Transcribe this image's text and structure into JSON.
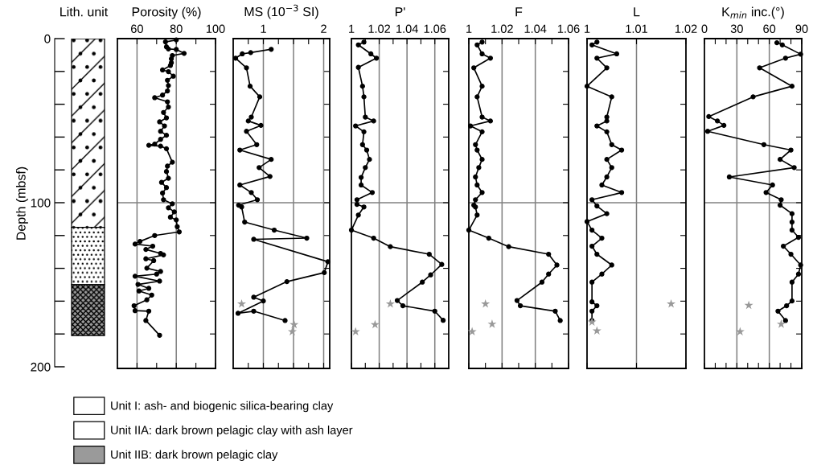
{
  "chart_data": [
    {
      "type": "bar",
      "title": "Lith. unit",
      "ylabel": "Depth (mbsf)",
      "stacked": true,
      "categories": [
        null
      ],
      "ylim": [
        201,
        0
      ],
      "yticks": [
        0,
        {
          "value": 20,
          "label": null
        },
        {
          "value": 40,
          "label": null
        },
        {
          "value": 60,
          "label": null
        },
        {
          "value": 80,
          "label": null
        },
        100,
        {
          "value": 120,
          "label": null
        },
        {
          "value": 140,
          "label": null
        },
        {
          "value": 160,
          "label": null
        },
        {
          "value": 180,
          "label": null
        },
        200
      ],
      "tick_labels": "y",
      "legend": "bottom",
      "series": [
        {
          "name": "Unit I: ash- and biogenic silica-bearing clay",
          "color": "#ffffff",
          "values": [
            115
          ]
        },
        {
          "name": "Unit IIA: dark brown pelagic clay with ash layer",
          "color": "#ffffff",
          "values": [
            35
          ]
        },
        {
          "name": "Unit IIB: dark brown pelagic clay",
          "color": "#9a9a9a",
          "values": [
            31
          ]
        }
      ]
    },
    {
      "type": "line",
      "title": "Porosity (%)",
      "orientation": "horizontal",
      "marker": "circle",
      "tick_labels": "x",
      "xlim": [
        50,
        100
      ],
      "xticks": [
        60,
        {
          "value": 70,
          "label": null
        },
        80,
        {
          "value": 90,
          "label": null
        },
        100
      ],
      "ylim": [
        201,
        0
      ],
      "yticks": [
        {
          "value": 20,
          "label": null
        },
        {
          "value": 40,
          "label": null
        },
        {
          "value": 60,
          "label": null
        },
        {
          "value": 80,
          "label": null
        },
        {
          "value": 100,
          "label": null
        },
        {
          "value": 120,
          "label": null
        },
        {
          "value": 140,
          "label": null
        },
        {
          "value": 160,
          "label": null
        },
        {
          "value": 180,
          "label": null
        }
      ],
      "ref_lines": [
        {
          "axis": "y",
          "value": 100,
          "color": "#808080"
        },
        {
          "axis": "x",
          "value": 60,
          "color": "#808080"
        },
        {
          "axis": "x",
          "value": 80,
          "color": "#808080"
        }
      ],
      "series": [
        {
          "color": "#000000",
          "x": [
            0.8,
            2,
            5,
            6.3,
            6.6,
            9,
            10.3,
            12.3,
            14.7,
            16.4,
            19.1,
            20.1,
            22.9,
            25.4,
            28.6,
            31.9,
            34.4,
            36,
            38.5,
            41.7,
            45,
            48.3,
            50.7,
            53.2,
            56.5,
            58.9,
            61.4,
            64.3,
            65,
            65.5,
            67.1,
            75.3,
            77.7,
            81,
            85.1,
            87.6,
            90.8,
            94.1,
            98.2,
            100.7,
            103.1,
            105.6,
            108.8,
            110.5,
            114.6,
            117.8,
            120,
            123.6,
            125.2,
            126.5,
            128.5,
            130.9,
            131.8,
            134.2,
            135.3,
            139.9,
            141.9,
            143.5,
            144.8,
            147.8,
            149.8,
            152.2,
            153.8,
            156.3,
            159.2,
            162.8,
            165.8,
            166.1,
            171.8,
            180.8
          ],
          "values": [
            80,
            74.5,
            75,
            76,
            80,
            84,
            78,
            77.5,
            77.5,
            77,
            73,
            76,
            78.5,
            75.5,
            76,
            75.5,
            73,
            69,
            75.5,
            76,
            73.5,
            75,
            71.5,
            74,
            72,
            75,
            72,
            69,
            66,
            72,
            75,
            78,
            75.5,
            75,
            76,
            72.5,
            75,
            73,
            73.5,
            78,
            76,
            79,
            77,
            80,
            80.5,
            81.5,
            69,
            61.5,
            59,
            68,
            64.5,
            72,
            73.5,
            64.5,
            68.5,
            65,
            72,
            70,
            59,
            71.5,
            60.5,
            66,
            61,
            67.5,
            65,
            58.5,
            59,
            66,
            64.5,
            71.5
          ]
        }
      ]
    },
    {
      "type": "line",
      "title": "MS (10$^{−3}$ SI)",
      "orientation": "horizontal",
      "marker": "circle",
      "tick_labels": "x",
      "xlim": [
        0.5,
        2.1
      ],
      "xticks": [
        {
          "value": 0.75,
          "label": null
        },
        1,
        {
          "value": 1.25,
          "label": null
        },
        {
          "value": 1.5,
          "label": null
        },
        {
          "value": 1.75,
          "label": null
        },
        2
      ],
      "ylim": [
        201,
        0
      ],
      "yticks": [
        {
          "value": 20,
          "label": null
        },
        {
          "value": 40,
          "label": null
        },
        {
          "value": 60,
          "label": null
        },
        {
          "value": 80,
          "label": null
        },
        {
          "value": 100,
          "label": null
        },
        {
          "value": 120,
          "label": null
        },
        {
          "value": 140,
          "label": null
        },
        {
          "value": 160,
          "label": null
        },
        {
          "value": 180,
          "label": null
        }
      ],
      "ref_lines": [
        {
          "axis": "y",
          "value": 100,
          "color": "#808080"
        },
        {
          "axis": "x",
          "value": 1,
          "color": "#808080"
        },
        {
          "axis": "x",
          "value": 1.5,
          "color": "#808080"
        },
        {
          "axis": "x",
          "value": 2,
          "color": "#808080"
        }
      ],
      "series": [
        {
          "color": "#000000",
          "x": [
            6.5,
            8.5,
            9.3,
            11.9,
            17.8,
            29,
            35.5,
            47.8,
            50.2,
            52.9,
            56.5,
            64.6,
            67.9,
            73.6,
            78.6,
            84,
            89.2,
            93.8,
            98.2,
            101.5,
            102.6,
            111.8,
            116.7,
            121.6,
            122.3,
            136,
            142.6,
            148.1,
            157.6,
            159.9,
            167.4,
            166.1,
            171.8
          ],
          "values": [
            1.13,
            0.79,
            0.65,
            0.54,
            0.72,
            0.78,
            0.94,
            0.8,
            0.75,
            0.96,
            0.72,
            0.89,
            0.61,
            1.13,
            0.93,
            1.11,
            0.61,
            0.8,
            0.9,
            0.59,
            0.64,
            0.69,
            1.18,
            1.72,
            0.84,
            2.07,
            2.01,
            1.39,
            0.84,
            1,
            0.58,
            0.84,
            1.36
          ]
        },
        {
          "type": "scatter",
          "marker": "star",
          "color": "#999999",
          "x": [
            161.7,
            174.3,
            178.6
          ],
          "values": [
            0.64,
            1.51,
            1.48
          ]
        }
      ]
    },
    {
      "type": "line",
      "title": "P'",
      "orientation": "horizontal",
      "marker": "circle",
      "tick_labels": "x",
      "xlim": [
        1,
        1.07
      ],
      "xticks": [
        1,
        {
          "value": 1.01,
          "label": null
        },
        1.02,
        {
          "value": 1.03,
          "label": null
        },
        1.04,
        {
          "value": 1.05,
          "label": null
        },
        1.06
      ],
      "ylim": [
        201,
        0
      ],
      "yticks": [
        {
          "value": 20,
          "label": null
        },
        {
          "value": 40,
          "label": null
        },
        {
          "value": 60,
          "label": null
        },
        {
          "value": 80,
          "label": null
        },
        {
          "value": 100,
          "label": null
        },
        {
          "value": 120,
          "label": null
        },
        {
          "value": 140,
          "label": null
        },
        {
          "value": 160,
          "label": null
        },
        {
          "value": 180,
          "label": null
        }
      ],
      "ref_lines": [
        {
          "axis": "y",
          "value": 100,
          "color": "#808080"
        },
        {
          "axis": "x",
          "value": 1.02,
          "color": "#808080"
        },
        {
          "axis": "x",
          "value": 1.04,
          "color": "#808080"
        },
        {
          "axis": "x",
          "value": 1.06,
          "color": "#808080"
        }
      ],
      "series": [
        {
          "color": "#000000",
          "x": [
            2.1,
            3.8,
            9.3,
            11.9,
            17.5,
            29,
            35.5,
            47.8,
            50.2,
            53.2,
            56.8,
            64.6,
            67.9,
            73.6,
            78.6,
            84.6,
            89.2,
            93.8,
            98.2,
            101,
            102.6,
            107.5,
            116.7,
            121.6,
            126.8,
            131.4,
            137.6,
            144,
            148.4,
            159.6,
            162.8,
            166.1,
            171.7
          ],
          "values": [
            1.009,
            1.005,
            1.014,
            1.018,
            1.005,
            1.008,
            1.009,
            1.01,
            1.016,
            1.003,
            1.009,
            1.008,
            1.011,
            1.013,
            1.01,
            1.007,
            1.007,
            1.015,
            1.004,
            1.004,
            1.009,
            1.005,
            1.0,
            1.016,
            1.028,
            1.056,
            1.065,
            1.057,
            1.051,
            1.033,
            1.037,
            1.06,
            1.066
          ]
        },
        {
          "type": "scatter",
          "marker": "star",
          "color": "#999999",
          "x": [
            161.7,
            174.3,
            178.6
          ],
          "values": [
            1.028,
            1.017,
            1.003
          ]
        }
      ]
    },
    {
      "type": "line",
      "title": "F",
      "orientation": "horizontal",
      "marker": "circle",
      "tick_labels": "x",
      "xlim": [
        1,
        1.06
      ],
      "xticks": [
        1,
        {
          "value": 1.01,
          "label": null
        },
        1.02,
        {
          "value": 1.03,
          "label": null
        },
        1.04,
        {
          "value": 1.05,
          "label": null
        },
        1.06
      ],
      "ylim": [
        201,
        0
      ],
      "yticks": [
        {
          "value": 20,
          "label": null
        },
        {
          "value": 40,
          "label": null
        },
        {
          "value": 60,
          "label": null
        },
        {
          "value": 80,
          "label": null
        },
        {
          "value": 100,
          "label": null
        },
        {
          "value": 120,
          "label": null
        },
        {
          "value": 140,
          "label": null
        },
        {
          "value": 160,
          "label": null
        },
        {
          "value": 180,
          "label": null
        }
      ],
      "ref_lines": [
        {
          "axis": "y",
          "value": 100,
          "color": "#808080"
        },
        {
          "axis": "x",
          "value": 1.02,
          "color": "#808080"
        },
        {
          "axis": "x",
          "value": 1.04,
          "color": "#808080"
        }
      ],
      "series": [
        {
          "color": "#000000",
          "x": [
            2.1,
            3.8,
            9.3,
            11.9,
            17.8,
            29,
            35.5,
            47.8,
            50.2,
            53.2,
            56.8,
            64.6,
            67.9,
            73.6,
            78.6,
            84.3,
            89.2,
            93.8,
            98.2,
            101.5,
            102.6,
            107.5,
            116.7,
            121.6,
            126.8,
            131.4,
            138,
            143.5,
            148.4,
            159.6,
            162.8,
            166.1,
            171.8
          ],
          "values": [
            1.008,
            1.005,
            1.008,
            1.013,
            1.003,
            1.008,
            1.005,
            1.008,
            1.013,
            1.001,
            1.008,
            1.004,
            1.005,
            1.008,
            1.006,
            1.004,
            1.005,
            1.008,
            1.004,
            1.003,
            1.004,
            1.005,
            1.0,
            1.012,
            1.024,
            1.048,
            1.053,
            1.048,
            1.044,
            1.029,
            1.031,
            1.052,
            1.055
          ]
        },
        {
          "type": "scatter",
          "marker": "star",
          "color": "#999999",
          "x": [
            161.7,
            174,
            178.6
          ],
          "values": [
            1.01,
            1.014,
            1.002
          ]
        }
      ]
    },
    {
      "type": "line",
      "title": "L",
      "orientation": "horizontal",
      "marker": "circle",
      "tick_labels": "x",
      "xlim": [
        1,
        1.02
      ],
      "xticks": [
        1,
        1.01,
        1.02
      ],
      "ylim": [
        201,
        0
      ],
      "yticks": [
        {
          "value": 20,
          "label": null
        },
        {
          "value": 40,
          "label": null
        },
        {
          "value": 60,
          "label": null
        },
        {
          "value": 80,
          "label": null
        },
        {
          "value": 100,
          "label": null
        },
        {
          "value": 120,
          "label": null
        },
        {
          "value": 140,
          "label": null
        },
        {
          "value": 160,
          "label": null
        },
        {
          "value": 180,
          "label": null
        }
      ],
      "ref_lines": [
        {
          "axis": "y",
          "value": 100,
          "color": "#808080"
        },
        {
          "axis": "x",
          "value": 1.01,
          "color": "#808080"
        }
      ],
      "series": [
        {
          "color": "#000000",
          "x": [
            2.1,
            3.8,
            9.3,
            11.9,
            17.8,
            29,
            35.5,
            47.8,
            50.2,
            53.2,
            56.8,
            64.6,
            67.9,
            73.6,
            78.6,
            84.3,
            89.2,
            93.8,
            98.2,
            102,
            106.7,
            111.5,
            116.7,
            121.6,
            126.5,
            131.4,
            138,
            143.5,
            148.4,
            160.4,
            162.8,
            166.1,
            171.8
          ],
          "values": [
            1.002,
            1.001,
            1.006,
            1.002,
            1.004,
            1.0,
            1.005,
            1.004,
            1.004,
            1.002,
            1.004,
            1.005,
            1.007,
            1.004,
            1.005,
            1.004,
            1.003,
            1.007,
            1.001,
            1.002,
            1.004,
            1.0,
            1.001,
            1.003,
            1.001,
            1.002,
            1.005,
            1.003,
            1.001,
            1.001,
            1.002,
            1.001,
            1.001
          ]
        },
        {
          "type": "scatter",
          "marker": "star",
          "color": "#999999",
          "x": [
            161.7,
            172.7,
            178.1
          ],
          "values": [
            1.017,
            1.001,
            1.002
          ]
        }
      ]
    },
    {
      "type": "line",
      "title": "K$_{min}$ inc.(°)",
      "orientation": "horizontal",
      "marker": "circle",
      "tick_labels": "x",
      "xlim": [
        0,
        90
      ],
      "xticks": [
        0,
        {
          "value": 10,
          "label": null
        },
        {
          "value": 20,
          "label": null
        },
        30,
        {
          "value": 40,
          "label": null
        },
        {
          "value": 50,
          "label": null
        },
        60,
        {
          "value": 70,
          "label": null
        },
        {
          "value": 80,
          "label": null
        },
        90
      ],
      "ylim": [
        201,
        0
      ],
      "yticks": [
        {
          "value": 20,
          "label": null
        },
        {
          "value": 40,
          "label": null
        },
        {
          "value": 60,
          "label": null
        },
        {
          "value": 80,
          "label": null
        },
        {
          "value": 100,
          "label": null
        },
        {
          "value": 120,
          "label": null
        },
        {
          "value": 140,
          "label": null
        },
        {
          "value": 160,
          "label": null
        },
        {
          "value": 180,
          "label": null
        }
      ],
      "ref_lines": [
        {
          "axis": "y",
          "value": 100,
          "color": "#808080"
        },
        {
          "axis": "x",
          "value": 30,
          "color": "#808080"
        },
        {
          "axis": "x",
          "value": 60,
          "color": "#808080"
        }
      ],
      "series": [
        {
          "color": "#000000",
          "x": [
            2.5,
            3.8,
            9.5,
            11.9,
            17.8,
            29,
            35.5,
            47.5,
            50.2,
            52.9,
            56.5,
            64.6,
            67.9,
            73.6,
            78.6,
            84.3,
            89.2,
            93.8,
            98.2,
            101.5,
            106.7,
            111.8,
            116.7,
            121.1,
            126.5,
            131.4,
            138,
            143.5,
            148.4,
            159.9,
            162.8,
            166.1,
            171.8
          ],
          "values": [
            67,
            72,
            89,
            75,
            51,
            81,
            45,
            4,
            12,
            18,
            3,
            55,
            80,
            70,
            83,
            23,
            63,
            57,
            71,
            70,
            81,
            81,
            81,
            87,
            73,
            80,
            89,
            87,
            81,
            81,
            76,
            68,
            75
          ]
        },
        {
          "type": "scatter",
          "marker": "star",
          "color": "#999999",
          "x": [
            162.5,
            174,
            178.6
          ],
          "values": [
            41,
            71,
            33
          ]
        }
      ]
    }
  ]
}
